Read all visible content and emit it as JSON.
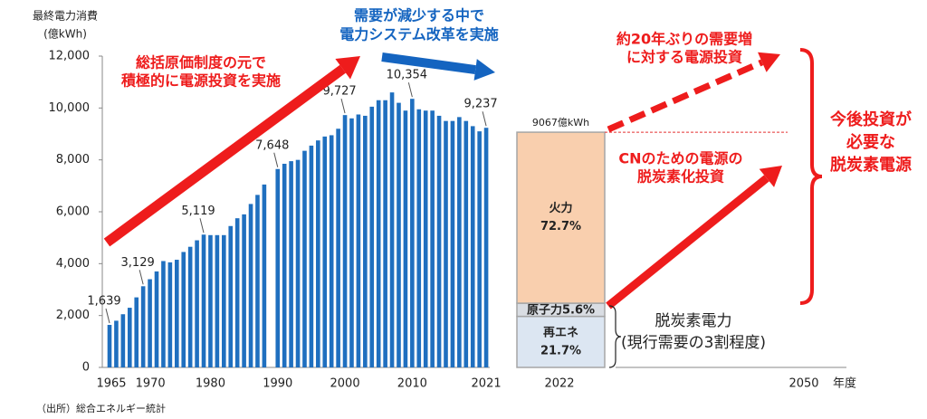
{
  "chart_data": [
    {
      "type": "bar",
      "y_label": [
        "最終電力消費",
        "(億kWh)"
      ],
      "categories": [
        "1965",
        null,
        null,
        null,
        null,
        "1970",
        null,
        null,
        null,
        null,
        null,
        null,
        null,
        null,
        null,
        "1980",
        null,
        null,
        null,
        null,
        null,
        null,
        null,
        null,
        null,
        "1990",
        null,
        null,
        null,
        null,
        null,
        null,
        null,
        null,
        null,
        "2000",
        null,
        null,
        null,
        null,
        null,
        null,
        null,
        null,
        null,
        "2010",
        null,
        null,
        null,
        null,
        null,
        null,
        null,
        null,
        null,
        null,
        "2021"
      ],
      "values": [
        1639,
        1800,
        2050,
        2300,
        2700,
        3129,
        3400,
        3700,
        4100,
        4050,
        4150,
        4450,
        4650,
        4900,
        5119,
        5100,
        5100,
        5100,
        5450,
        5750,
        5900,
        6300,
        6650,
        7050,
        null,
        7648,
        7850,
        7950,
        8000,
        8350,
        8550,
        8750,
        8900,
        8950,
        9200,
        9727,
        9600,
        9750,
        9700,
        10050,
        10300,
        10300,
        10600,
        10200,
        9900,
        10354,
        9950,
        9900,
        9900,
        9700,
        9500,
        9500,
        9650,
        9500,
        9300,
        9100,
        9237
      ],
      "value_labels": [
        "1,639",
        null,
        null,
        null,
        null,
        "3,129",
        null,
        null,
        null,
        null,
        null,
        null,
        null,
        null,
        "5,119",
        null,
        null,
        null,
        null,
        null,
        null,
        null,
        null,
        null,
        null,
        "7,648",
        null,
        null,
        null,
        null,
        null,
        null,
        null,
        null,
        null,
        "9,727",
        null,
        null,
        null,
        null,
        null,
        null,
        null,
        null,
        null,
        "10,354",
        null,
        null,
        null,
        null,
        null,
        null,
        null,
        null,
        null,
        null,
        "9,237"
      ],
      "color": "#1f6fbf",
      "ylim": [
        0,
        12000
      ],
      "yticks": [
        0,
        {
          "value": 2000,
          "label": "2,000"
        },
        {
          "value": 4000,
          "label": "4,000"
        },
        {
          "value": 6000,
          "label": "6,000"
        },
        {
          "value": 8000,
          "label": "8,000"
        },
        {
          "value": 10000,
          "label": "10,000"
        },
        {
          "value": 12000,
          "label": "12,000"
        }
      ]
    },
    {
      "type": "stacked_bar",
      "categories": [
        "2022",
        "2050"
      ],
      "x_label": "年度",
      "total": 9067,
      "total_label": "9067億kWh",
      "series": [
        {
          "name": "再エネ",
          "color": "#dce6f2",
          "values": [
            21.7,
            null
          ],
          "value_labels": [
            "21.7%",
            null
          ]
        },
        {
          "name": "原子力",
          "color": "#d9dde3",
          "values": [
            5.6,
            null
          ],
          "value_labels": [
            "5.6%",
            null
          ]
        },
        {
          "name": "火力",
          "color": "#f9cfae",
          "values": [
            72.7,
            null
          ],
          "value_labels": [
            "72.7%",
            null
          ]
        }
      ]
    }
  ],
  "annotations": [
    {
      "lines": [
        "総括原価制度の元で",
        "積極的に電源投資を実施"
      ]
    },
    {
      "lines": [
        "需要が減少する中で",
        "電力システム改革を実施"
      ]
    },
    {
      "lines": [
        "約20年ぶりの需要増",
        "に対する電源投資"
      ]
    },
    {
      "lines": [
        "CNのための電源の",
        "脱炭素化投資"
      ]
    },
    {
      "lines": [
        "今後投資が",
        "必要な",
        "脱炭素電源"
      ]
    },
    {
      "lines": [
        "脱炭素電力",
        "(現行需要の3割程度)"
      ]
    }
  ],
  "source": "（出所）総合エネルギー統計"
}
